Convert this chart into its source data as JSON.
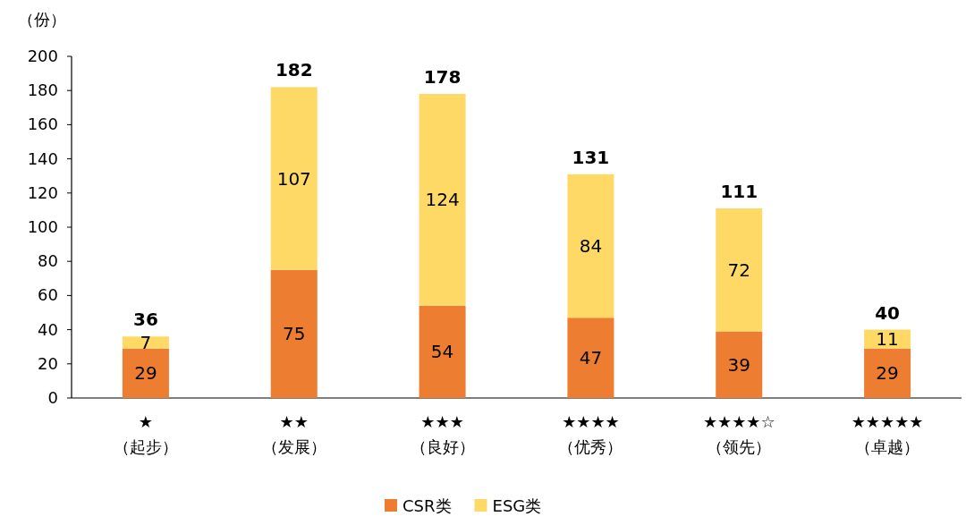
{
  "chart_data": {
    "type": "bar",
    "stacked": true,
    "ylabel": "（份）",
    "categories": [
      "★\n（起步）",
      "★★\n（发展）",
      "★★★\n（良好）",
      "★★★★\n（优秀）",
      "★★★★☆\n（领先）",
      "★★★★★\n（卓越）"
    ],
    "series": [
      {
        "name": "CSR类",
        "color": "#ed7d31",
        "values": [
          29,
          75,
          54,
          47,
          39,
          29
        ]
      },
      {
        "name": "ESG类",
        "color": "#ffd966",
        "values": [
          7,
          107,
          124,
          84,
          72,
          11
        ]
      }
    ],
    "ylim": [
      0,
      200
    ],
    "yticks": [
      0,
      20,
      40,
      60,
      80,
      100,
      120,
      140,
      160,
      180,
      200
    ],
    "data_labels": true,
    "totals": [
      "36",
      "182",
      "178",
      "131",
      "111",
      "40"
    ],
    "legend": "bottom",
    "grid": false
  }
}
